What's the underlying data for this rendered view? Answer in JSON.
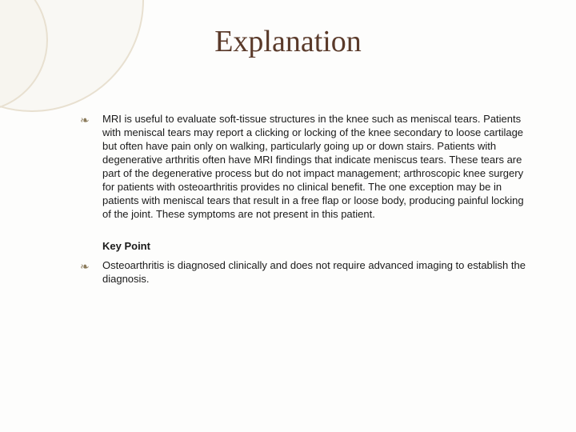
{
  "title": "Explanation",
  "body1": "MRI is useful to evaluate soft-tissue structures in the knee such as meniscal tears. Patients with meniscal tears may report a clicking or locking of the knee secondary to loose cartilage but often have pain only on walking, particularly going up or down stairs. Patients with degenerative arthritis often have MRI findings that indicate meniscus tears. These tears are part of the degenerative process but do not impact management; arthroscopic knee surgery for patients with osteoarthritis provides no clinical benefit. The one exception may be in patients with meniscal tears that result in a free flap or loose body, producing painful locking of the joint. These symptoms are not present in this patient.",
  "keypoint_label": "Key Point",
  "keypoint_text": "Osteoarthritis is diagnosed clinically and does not require advanced imaging to establish the diagnosis.",
  "bullet_glyph": "❧",
  "colors": {
    "title": "#5a3a2a",
    "bullet": "#8a7a5a",
    "circle_border": "#e8e0d0",
    "background": "#fdfdfc",
    "text": "#1a1a1a"
  },
  "fonts": {
    "title_family": "Georgia serif",
    "title_size_pt": 28,
    "body_family": "Arial sans-serif",
    "body_size_pt": 10
  }
}
